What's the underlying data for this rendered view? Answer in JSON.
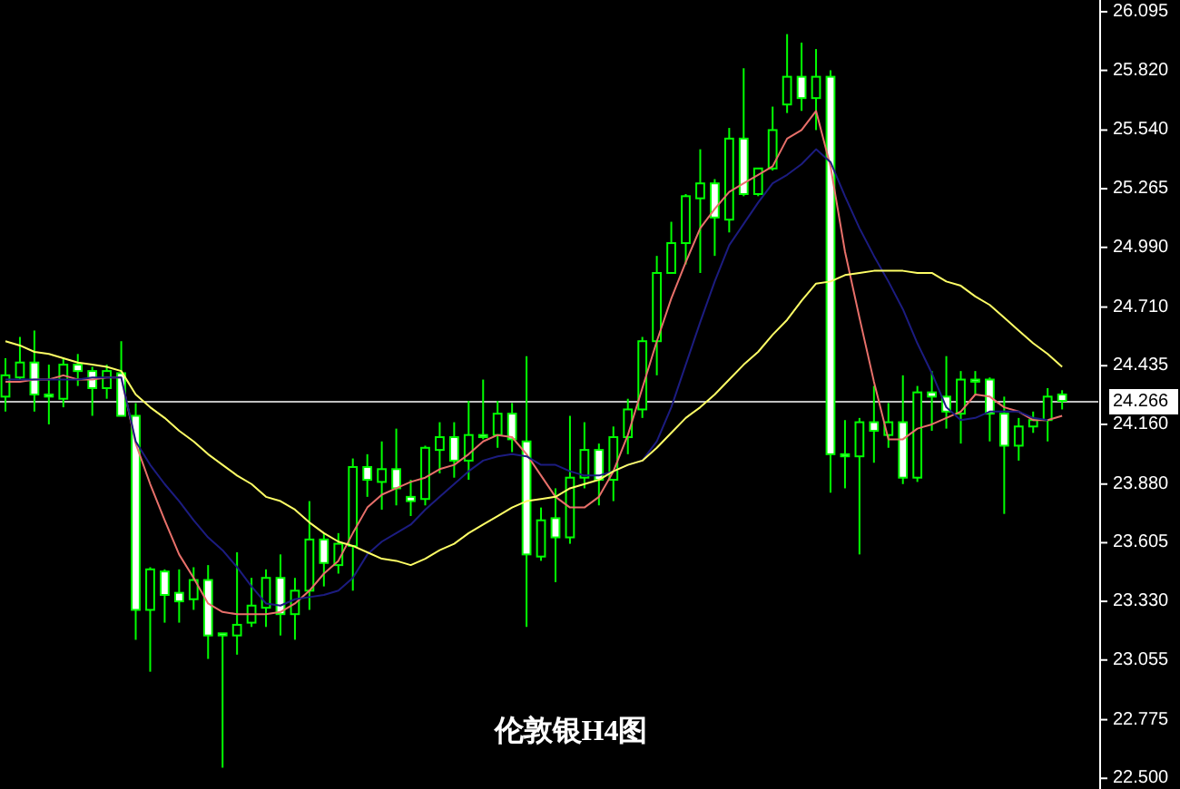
{
  "chart_data": {
    "type": "candlestick",
    "title": "伦敦银H4图",
    "color": "#00ff00",
    "tick_labels": "y",
    "categories": [
      null,
      null,
      null,
      null,
      null,
      null,
      null,
      null,
      null,
      null,
      null,
      null,
      null,
      null,
      null,
      null,
      null,
      null,
      null,
      null,
      null,
      null,
      null,
      null,
      null,
      null,
      null,
      null,
      null,
      null,
      null,
      null,
      null,
      null,
      null,
      null,
      null,
      null,
      null,
      null,
      null,
      null,
      null,
      null,
      null,
      null,
      null,
      null,
      null,
      null,
      null,
      null,
      null,
      null,
      null,
      null,
      null,
      null,
      null,
      null,
      null,
      null,
      null,
      null,
      null,
      null,
      null,
      null,
      null,
      null,
      null,
      null,
      null,
      null
    ],
    "ohlc": [
      [
        24.29,
        24.47,
        24.22,
        24.39
      ],
      [
        24.38,
        24.57,
        24.37,
        24.45
      ],
      [
        24.45,
        24.6,
        24.22,
        24.3
      ],
      [
        24.3,
        24.44,
        24.16,
        24.29
      ],
      [
        24.28,
        24.47,
        24.24,
        24.44
      ],
      [
        24.44,
        24.49,
        24.34,
        24.41
      ],
      [
        24.41,
        24.43,
        24.2,
        24.33
      ],
      [
        24.33,
        24.44,
        24.28,
        24.41
      ],
      [
        24.4,
        24.55,
        24.2,
        24.2
      ],
      [
        24.2,
        24.26,
        23.15,
        23.29
      ],
      [
        23.29,
        23.49,
        23.0,
        23.48
      ],
      [
        23.47,
        23.48,
        23.23,
        23.36
      ],
      [
        23.37,
        23.48,
        23.23,
        23.33
      ],
      [
        23.34,
        23.49,
        23.29,
        23.43
      ],
      [
        23.43,
        23.5,
        23.06,
        23.17
      ],
      [
        23.18,
        23.18,
        22.55,
        23.17
      ],
      [
        23.17,
        23.56,
        23.08,
        23.22
      ],
      [
        23.23,
        23.44,
        23.21,
        23.31
      ],
      [
        23.3,
        23.48,
        23.21,
        23.44
      ],
      [
        23.44,
        23.55,
        23.17,
        23.27
      ],
      [
        23.27,
        23.44,
        23.15,
        23.38
      ],
      [
        23.38,
        23.8,
        23.29,
        23.62
      ],
      [
        23.62,
        23.65,
        23.4,
        23.51
      ],
      [
        23.5,
        23.65,
        23.46,
        23.6
      ],
      [
        23.59,
        24.0,
        23.38,
        23.96
      ],
      [
        23.96,
        24.02,
        23.82,
        23.9
      ],
      [
        23.89,
        24.08,
        23.76,
        23.95
      ],
      [
        23.95,
        24.14,
        23.78,
        23.86
      ],
      [
        23.82,
        23.9,
        23.73,
        23.8
      ],
      [
        23.81,
        24.06,
        23.78,
        24.05
      ],
      [
        24.04,
        24.17,
        23.93,
        24.1
      ],
      [
        24.1,
        24.17,
        23.91,
        23.99
      ],
      [
        23.99,
        24.27,
        23.9,
        24.11
      ],
      [
        24.11,
        24.37,
        24.09,
        24.1
      ],
      [
        24.11,
        24.27,
        24.05,
        24.21
      ],
      [
        24.21,
        24.26,
        24.03,
        24.09
      ],
      [
        24.08,
        24.48,
        23.21,
        23.55
      ],
      [
        23.54,
        23.77,
        23.52,
        23.71
      ],
      [
        23.72,
        23.86,
        23.42,
        23.63
      ],
      [
        23.63,
        24.2,
        23.6,
        23.91
      ],
      [
        23.91,
        24.17,
        23.86,
        24.04
      ],
      [
        24.04,
        24.07,
        23.78,
        23.9
      ],
      [
        23.9,
        24.15,
        23.8,
        24.1
      ],
      [
        24.1,
        24.28,
        24.02,
        24.23
      ],
      [
        24.23,
        24.57,
        24.19,
        24.55
      ],
      [
        24.55,
        24.95,
        24.39,
        24.87
      ],
      [
        24.87,
        25.11,
        24.87,
        25.01
      ],
      [
        25.01,
        25.24,
        24.91,
        25.23
      ],
      [
        25.22,
        25.45,
        24.87,
        25.29
      ],
      [
        25.29,
        25.31,
        24.95,
        25.13
      ],
      [
        25.12,
        25.55,
        25.06,
        25.5
      ],
      [
        25.5,
        25.83,
        25.23,
        25.24
      ],
      [
        25.24,
        25.36,
        25.23,
        25.36
      ],
      [
        25.36,
        25.65,
        25.35,
        25.54
      ],
      [
        25.66,
        25.99,
        25.62,
        25.79
      ],
      [
        25.79,
        25.95,
        25.63,
        25.69
      ],
      [
        25.69,
        25.92,
        25.54,
        25.79
      ],
      [
        25.79,
        25.82,
        23.84,
        24.02
      ],
      [
        24.02,
        24.18,
        23.86,
        24.01
      ],
      [
        24.01,
        24.19,
        23.55,
        24.17
      ],
      [
        24.17,
        24.34,
        23.98,
        24.13
      ],
      [
        24.11,
        24.26,
        24.05,
        24.17
      ],
      [
        24.17,
        24.39,
        23.88,
        23.91
      ],
      [
        23.91,
        24.34,
        23.89,
        24.31
      ],
      [
        24.31,
        24.41,
        24.13,
        24.29
      ],
      [
        24.29,
        24.48,
        24.14,
        24.22
      ],
      [
        24.21,
        24.41,
        24.07,
        24.37
      ],
      [
        24.37,
        24.41,
        24.3,
        24.36
      ],
      [
        24.37,
        24.38,
        24.08,
        24.21
      ],
      [
        24.21,
        24.29,
        23.74,
        24.06
      ],
      [
        24.06,
        24.19,
        23.99,
        24.15
      ],
      [
        24.15,
        24.22,
        24.12,
        24.18
      ],
      [
        24.18,
        24.33,
        24.08,
        24.29
      ],
      [
        24.3,
        24.32,
        24.23,
        24.27
      ]
    ],
    "series": [
      {
        "type": "line",
        "color": "#e8706a",
        "values": [
          24.36,
          24.36,
          24.37,
          24.37,
          24.39,
          24.37,
          24.37,
          24.38,
          24.38,
          24.07,
          23.88,
          23.71,
          23.55,
          23.44,
          23.32,
          23.28,
          23.27,
          23.27,
          23.27,
          23.28,
          23.32,
          23.38,
          23.46,
          23.52,
          23.65,
          23.77,
          23.83,
          23.86,
          23.89,
          23.91,
          23.95,
          23.97,
          24.02,
          24.08,
          24.11,
          24.1,
          24.02,
          23.92,
          23.82,
          23.77,
          23.77,
          23.82,
          23.94,
          24.11,
          24.33,
          24.55,
          24.75,
          24.92,
          25.08,
          25.17,
          25.25,
          25.29,
          25.33,
          25.37,
          25.5,
          25.54,
          25.63,
          25.37,
          24.97,
          24.66,
          24.36,
          24.09,
          24.09,
          24.14,
          24.16,
          24.19,
          24.22,
          24.3,
          24.29,
          24.24,
          24.22,
          24.18,
          24.18,
          24.2
        ]
      },
      {
        "type": "line",
        "color": "#1c1c80",
        "values": [
          24.37,
          24.37,
          24.37,
          24.37,
          24.37,
          24.37,
          24.38,
          24.38,
          24.38,
          24.08,
          23.97,
          23.88,
          23.8,
          23.71,
          23.63,
          23.57,
          23.49,
          23.4,
          23.32,
          23.31,
          23.34,
          23.35,
          23.36,
          23.38,
          23.44,
          23.55,
          23.61,
          23.65,
          23.69,
          23.76,
          23.82,
          23.88,
          23.94,
          23.99,
          24.01,
          24.02,
          24.01,
          23.97,
          23.97,
          23.94,
          23.92,
          23.92,
          23.94,
          23.97,
          23.99,
          24.08,
          24.24,
          24.44,
          24.64,
          24.83,
          25.0,
          25.1,
          25.2,
          25.29,
          25.33,
          25.38,
          25.45,
          25.39,
          25.23,
          25.08,
          24.95,
          24.83,
          24.7,
          24.54,
          24.4,
          24.24,
          24.18,
          24.19,
          24.22,
          24.22,
          24.22,
          24.19,
          24.18,
          null
        ]
      },
      {
        "type": "line",
        "color": "#ffff66",
        "values": [
          24.55,
          24.53,
          24.5,
          24.49,
          24.47,
          24.45,
          24.44,
          24.43,
          24.41,
          24.3,
          24.24,
          24.19,
          24.13,
          24.08,
          24.02,
          23.97,
          23.92,
          23.88,
          23.82,
          23.8,
          23.76,
          23.7,
          23.65,
          23.61,
          23.59,
          23.56,
          23.53,
          23.52,
          23.5,
          23.53,
          23.57,
          23.6,
          23.65,
          23.69,
          23.73,
          23.77,
          23.8,
          23.81,
          23.82,
          23.86,
          23.88,
          23.9,
          23.94,
          23.97,
          23.99,
          24.05,
          24.12,
          24.19,
          24.24,
          24.3,
          24.37,
          24.44,
          24.5,
          24.58,
          24.65,
          24.74,
          24.82,
          24.83,
          24.86,
          24.87,
          24.88,
          24.88,
          24.88,
          24.87,
          24.87,
          24.83,
          24.81,
          24.76,
          24.72,
          24.66,
          24.6,
          24.54,
          24.49,
          24.43
        ]
      }
    ],
    "ylim": [
      22.45,
      26.15
    ],
    "yticks": [
      {
        "value": 26.095,
        "label": "26.095"
      },
      {
        "value": 25.82,
        "label": "25.820"
      },
      {
        "value": 25.54,
        "label": "25.540"
      },
      {
        "value": 25.265,
        "label": "25.265"
      },
      {
        "value": 24.99,
        "label": "24.990"
      },
      {
        "value": 24.71,
        "label": "24.710"
      },
      {
        "value": 24.435,
        "label": "24.435"
      },
      {
        "value": 24.16,
        "label": "24.160"
      },
      {
        "value": 23.88,
        "label": "23.880"
      },
      {
        "value": 23.605,
        "label": "23.605"
      },
      {
        "value": 23.33,
        "label": "23.330"
      },
      {
        "value": 23.055,
        "label": "23.055"
      },
      {
        "value": 22.775,
        "label": "22.775"
      },
      {
        "value": 22.5,
        "label": "22.500"
      }
    ],
    "ref_lines": [
      {
        "axis": "y",
        "value": 24.266,
        "label": "24.266",
        "color": "#c0c0c0"
      }
    ]
  }
}
